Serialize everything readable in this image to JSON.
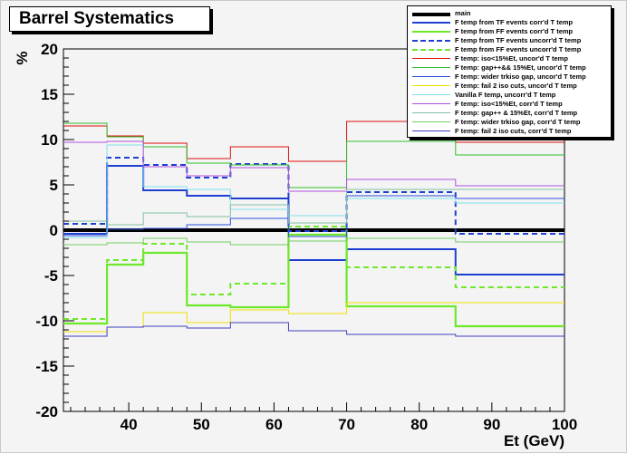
{
  "window": {
    "title": "Barrel Systematics"
  },
  "chart_data": {
    "type": "line",
    "title": "Barrel Systematics",
    "xlabel": "Et (GeV)",
    "ylabel": "%",
    "xlim": [
      31,
      100
    ],
    "ylim": [
      -20,
      20
    ],
    "x_ticks": [
      40,
      50,
      60,
      70,
      80,
      90,
      100
    ],
    "y_ticks": [
      -20,
      -15,
      -10,
      -5,
      0,
      5,
      10,
      15,
      20
    ],
    "bin_edges": [
      31,
      37,
      42,
      48,
      54,
      62,
      70,
      85,
      100
    ],
    "grid": false,
    "legend_position": "top-right",
    "series": [
      {
        "name": "main",
        "color": "#000000",
        "style": "solid",
        "width": 4,
        "values": [
          0,
          0,
          0,
          0,
          0,
          0,
          0,
          0
        ]
      },
      {
        "name": "F temp from TF events corr'd T temp",
        "color": "#1f3fd0",
        "style": "solid",
        "width": 2,
        "values": [
          -0.4,
          7.1,
          4.4,
          3.8,
          3.5,
          -3.3,
          -2.1,
          -4.9
        ]
      },
      {
        "name": "F temp from FF events corr'd T temp",
        "color": "#6ee82a",
        "style": "solid",
        "width": 2.2,
        "values": [
          -10.3,
          -3.8,
          -2.5,
          -8.3,
          -8.5,
          -0.5,
          -8.4,
          -10.6
        ]
      },
      {
        "name": "F temp from TF events uncorr'd T temp",
        "color": "#1f3fd0",
        "style": "dashed",
        "width": 2,
        "values": [
          0.7,
          8.0,
          7.2,
          5.8,
          7.3,
          -0.1,
          4.2,
          -0.4
        ]
      },
      {
        "name": "F temp from FF events uncorr'd T temp",
        "color": "#6ee82a",
        "style": "dashed",
        "width": 2,
        "values": [
          -9.8,
          -3.3,
          -1.5,
          -7.1,
          -5.9,
          0.4,
          -4.1,
          -6.3
        ]
      },
      {
        "name": "F temp: iso<15%Et, uncor'd T temp",
        "color": "#e01010",
        "style": "solid",
        "width": 1,
        "values": [
          11.5,
          10.4,
          9.6,
          7.9,
          9.2,
          7.6,
          12.0,
          9.7
        ]
      },
      {
        "name": "F temp: gap++&& 15%Et, uncor'd T temp",
        "color": "#30c030",
        "style": "solid",
        "width": 1,
        "values": [
          11.8,
          10.3,
          9.2,
          7.4,
          7.2,
          4.7,
          9.8,
          8.3
        ]
      },
      {
        "name": "F temp: wider trkiso gap, uncor'd T temp",
        "color": "#3050e0",
        "style": "solid",
        "width": 1,
        "values": [
          -0.6,
          0.1,
          0.2,
          0.6,
          1.3,
          -0.7,
          3.8,
          3.5
        ]
      },
      {
        "name": "F temp: fail 2 iso cuts, uncor'd T temp",
        "color": "#f0e000",
        "style": "solid",
        "width": 1,
        "values": [
          -11.2,
          -10.7,
          -9.1,
          -10.2,
          -8.8,
          -9.2,
          -8.0,
          -8.0
        ]
      },
      {
        "name": "Vanilla F temp, uncorr'd T temp",
        "color": "#80e0f0",
        "style": "solid",
        "width": 1,
        "values": [
          -0.8,
          9.4,
          4.8,
          4.5,
          2.3,
          1.6,
          3.5,
          3.0
        ]
      },
      {
        "name": "F temp: iso<15%Et, corr'd T temp",
        "color": "#b050e0",
        "style": "solid",
        "width": 1,
        "values": [
          9.7,
          9.8,
          7.0,
          6.0,
          6.9,
          4.3,
          5.6,
          4.9
        ]
      },
      {
        "name": "F temp: gap++ & 15%Et, corr'd T temp",
        "color": "#80c0a0",
        "style": "solid",
        "width": 1,
        "values": [
          1.0,
          0.6,
          1.9,
          1.5,
          2.8,
          0.8,
          4.5,
          4.5
        ]
      },
      {
        "name": "F temp: wider trkiso gap, corr'd T temp",
        "color": "#70d060",
        "style": "solid",
        "width": 1,
        "values": [
          -1.6,
          -1.4,
          -0.9,
          -1.3,
          -1.6,
          -1.2,
          -0.9,
          -1.3
        ]
      },
      {
        "name": "F temp: fail 2 iso cuts, corr'd T temp",
        "color": "#4040c0",
        "style": "solid",
        "width": 1,
        "values": [
          -11.7,
          -10.7,
          -10.6,
          -10.8,
          -10.2,
          -11.1,
          -11.5,
          -11.7
        ]
      }
    ]
  }
}
